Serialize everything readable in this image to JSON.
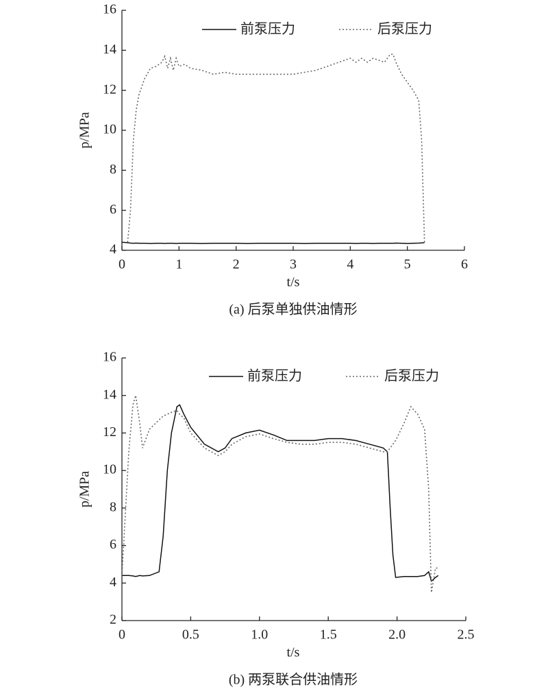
{
  "chart_data": [
    {
      "type": "line",
      "caption": "(a) 后泵单独供油情形",
      "xlabel": "t/s",
      "ylabel": "p/MPa",
      "x": [
        0,
        0.1,
        0.15,
        0.2,
        0.25,
        0.3,
        0.4,
        0.5,
        0.6,
        0.7,
        0.75,
        0.8,
        0.85,
        0.9,
        0.95,
        1.0,
        1.1,
        1.2,
        1.4,
        1.6,
        1.8,
        2.0,
        2.2,
        2.4,
        2.6,
        2.8,
        3.0,
        3.2,
        3.4,
        3.6,
        3.8,
        4.0,
        4.1,
        4.2,
        4.3,
        4.4,
        4.5,
        4.6,
        4.7,
        4.75,
        4.8,
        4.9,
        5.0,
        5.1,
        5.2,
        5.25,
        5.3
      ],
      "series": [
        {
          "name": "前泵压力",
          "color": "#111111",
          "line_style": "solid",
          "values": [
            4.4,
            4.38,
            4.36,
            4.35,
            4.36,
            4.35,
            4.35,
            4.34,
            4.35,
            4.35,
            4.34,
            4.35,
            4.35,
            4.35,
            4.34,
            4.35,
            4.35,
            4.35,
            4.34,
            4.35,
            4.35,
            4.35,
            4.34,
            4.35,
            4.35,
            4.35,
            4.35,
            4.34,
            4.35,
            4.35,
            4.35,
            4.35,
            4.34,
            4.35,
            4.35,
            4.34,
            4.35,
            4.35,
            4.35,
            4.35,
            4.36,
            4.35,
            4.34,
            4.35,
            4.36,
            4.37,
            4.38
          ]
        },
        {
          "name": "后泵压力",
          "color": "#666666",
          "line_style": "dotted",
          "values": [
            null,
            4.4,
            6,
            9.5,
            11,
            11.8,
            12.6,
            13.1,
            13.2,
            13.4,
            13.7,
            13.1,
            13.6,
            13.0,
            13.6,
            13.2,
            13.3,
            13.1,
            13.0,
            12.8,
            12.9,
            12.8,
            12.8,
            12.8,
            12.8,
            12.8,
            12.8,
            12.9,
            13.0,
            13.2,
            13.4,
            13.6,
            13.4,
            13.6,
            13.4,
            13.6,
            13.5,
            13.4,
            13.8,
            13.8,
            13.4,
            12.8,
            12.4,
            12.0,
            11.5,
            9.5,
            4.4
          ]
        }
      ],
      "xlim": [
        0,
        6
      ],
      "xticks": [
        0,
        1,
        2,
        3,
        4,
        5,
        6
      ],
      "ylim": [
        4,
        16
      ],
      "yticks": [
        4,
        6,
        8,
        10,
        12,
        14,
        16
      ]
    },
    {
      "type": "line",
      "caption": "(b) 两泵联合供油情形",
      "xlabel": "t/s",
      "ylabel": "p/MPa",
      "x": [
        0,
        0.05,
        0.08,
        0.1,
        0.13,
        0.15,
        0.2,
        0.27,
        0.3,
        0.33,
        0.36,
        0.4,
        0.42,
        0.45,
        0.5,
        0.6,
        0.7,
        0.75,
        0.8,
        0.9,
        1.0,
        1.1,
        1.2,
        1.3,
        1.4,
        1.5,
        1.6,
        1.7,
        1.8,
        1.9,
        1.93,
        1.95,
        1.97,
        1.99,
        2.05,
        2.1,
        2.15,
        2.2,
        2.23,
        2.25,
        2.28,
        2.3
      ],
      "series": [
        {
          "name": "前泵压力",
          "color": "#111111",
          "line_style": "solid",
          "values": [
            4.4,
            4.4,
            4.38,
            4.35,
            4.4,
            4.38,
            4.4,
            4.6,
            6.5,
            10,
            12,
            13.4,
            13.5,
            13,
            12.3,
            11.4,
            11.0,
            11.2,
            11.7,
            12.0,
            12.15,
            11.9,
            11.6,
            11.6,
            11.6,
            11.7,
            11.7,
            11.6,
            11.4,
            11.2,
            11.0,
            8,
            5.5,
            4.3,
            4.35,
            4.35,
            4.35,
            4.4,
            4.6,
            4.1,
            4.3,
            4.4
          ]
        },
        {
          "name": "后泵压力",
          "color": "#666666",
          "line_style": "dotted",
          "values": [
            4.4,
            11,
            13.5,
            14.0,
            12.5,
            11.2,
            12.2,
            12.7,
            12.9,
            13.0,
            13.1,
            13.2,
            13.0,
            12.8,
            12.0,
            11.2,
            10.8,
            11.0,
            11.4,
            11.8,
            11.95,
            11.7,
            11.5,
            11.4,
            11.4,
            11.5,
            11.5,
            11.4,
            11.2,
            11.0,
            11.0,
            11.2,
            11.4,
            11.6,
            12.5,
            13.4,
            13.0,
            12.2,
            9,
            3.5,
            4.8,
            4.8
          ]
        }
      ],
      "xlim": [
        0,
        2.5
      ],
      "xticks": [
        0,
        0.5,
        {
          "value": 1,
          "label": "1.0"
        },
        1.5,
        {
          "value": 2,
          "label": "2.0"
        },
        2.5
      ],
      "ylim": [
        2,
        16
      ],
      "yticks": [
        2,
        4,
        6,
        8,
        10,
        12,
        14,
        16
      ]
    }
  ]
}
